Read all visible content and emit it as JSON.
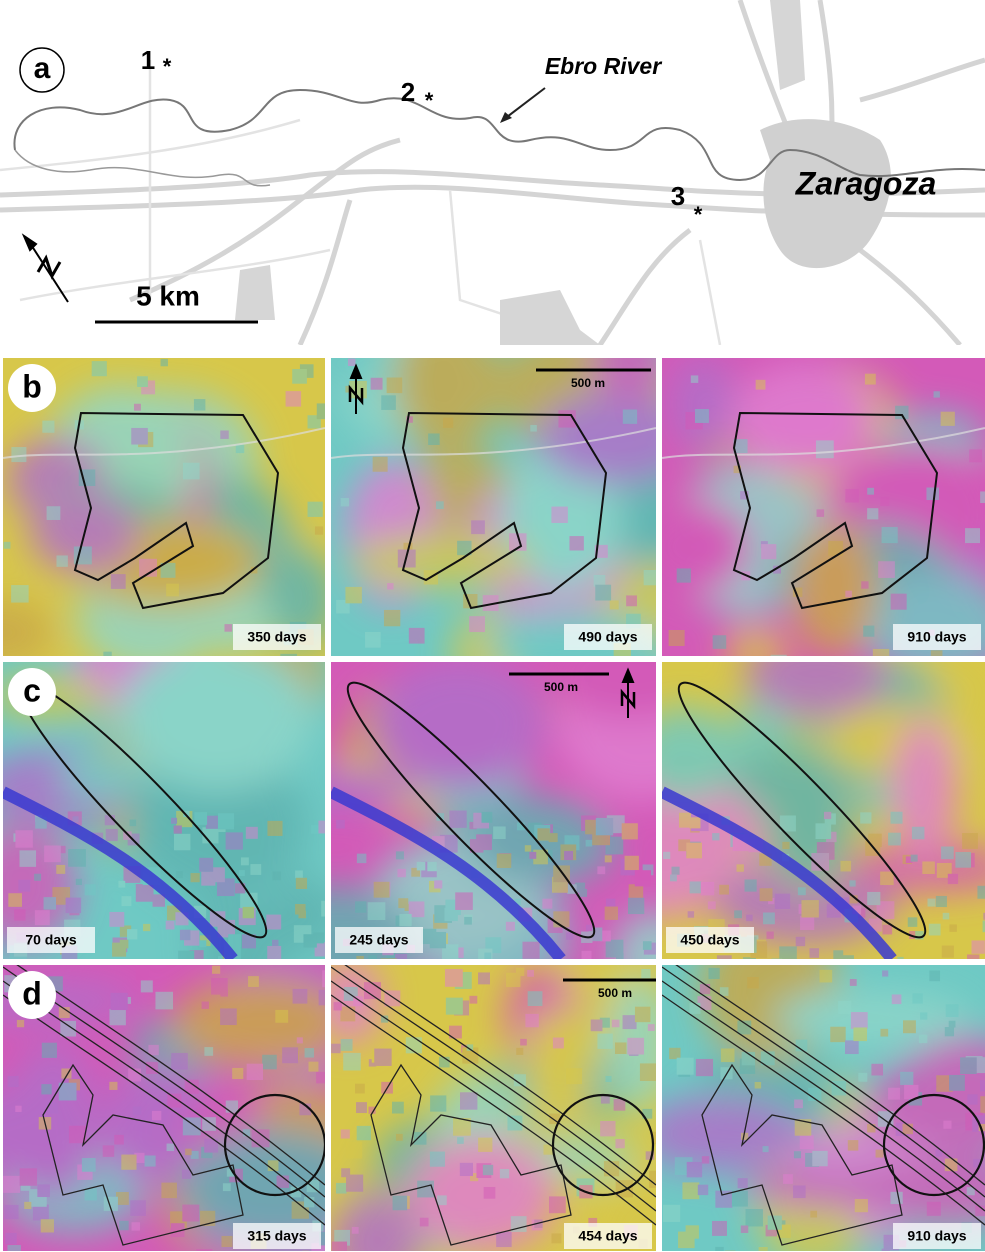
{
  "panel_a": {
    "label": "a",
    "sites": [
      "1",
      "2",
      "3"
    ],
    "river_label": "Ebro River",
    "city_label": "Zaragoza",
    "scale_label": "5 km"
  },
  "rows": [
    {
      "label": "b",
      "scale_label": "500 m",
      "panels": [
        "350 days",
        "490 days",
        "910 days"
      ]
    },
    {
      "label": "c",
      "scale_label": "500 m",
      "panels": [
        "70 days",
        "245 days",
        "450 days"
      ]
    },
    {
      "label": "d",
      "scale_label": "500 m",
      "panels": [
        "315 days",
        "454 days",
        "910 days"
      ]
    }
  ]
}
